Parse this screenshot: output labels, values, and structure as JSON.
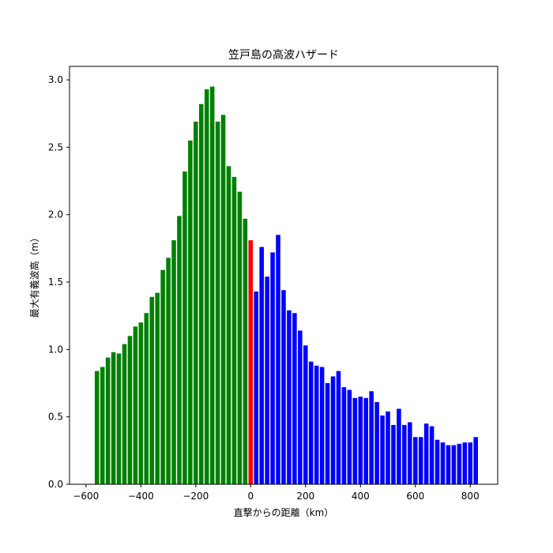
{
  "chart_data": {
    "type": "bar",
    "title": "笠戸島の高波ハザード",
    "xlabel": "直撃からの距離（km）",
    "ylabel": "最大有義波高（m）",
    "xlim": [
      -660,
      900
    ],
    "ylim": [
      0,
      3.1
    ],
    "x_ticks": [
      -600,
      -400,
      -200,
      0,
      200,
      400,
      600,
      800
    ],
    "y_ticks": [
      0.0,
      0.5,
      1.0,
      1.5,
      2.0,
      2.5,
      3.0
    ],
    "x_tick_labels": [
      "−600",
      "−400",
      "−200",
      "0",
      "200",
      "400",
      "600",
      "800"
    ],
    "y_tick_labels": [
      "0.0",
      "0.5",
      "1.0",
      "1.5",
      "2.0",
      "2.5",
      "3.0"
    ],
    "grid": false,
    "legend": "none",
    "colors": {
      "approach": "#008000",
      "direct": "#ff0000",
      "departure": "#0000ff"
    },
    "bar_width_km": 16,
    "series": [
      {
        "color_key": "approach",
        "x": [
          -560,
          -540,
          -520,
          -500,
          -480,
          -460,
          -440,
          -420,
          -400,
          -380,
          -360,
          -340,
          -320,
          -300,
          -280,
          -260,
          -240,
          -220,
          -200,
          -180,
          -160,
          -140,
          -120,
          -100,
          -80,
          -60,
          -40,
          -20
        ],
        "values": [
          0.84,
          0.87,
          0.94,
          0.98,
          0.97,
          1.04,
          1.1,
          1.17,
          1.2,
          1.27,
          1.39,
          1.42,
          1.59,
          1.68,
          1.81,
          1.99,
          2.32,
          2.55,
          2.69,
          2.82,
          2.93,
          2.95,
          2.69,
          2.74,
          2.36,
          2.28,
          2.17,
          1.97
        ]
      },
      {
        "color_key": "direct",
        "x": [
          0
        ],
        "values": [
          1.81
        ]
      },
      {
        "color_key": "departure",
        "x": [
          20,
          40,
          60,
          80,
          100,
          120,
          140,
          160,
          180,
          200,
          220,
          240,
          260,
          280,
          300,
          320,
          340,
          360,
          380,
          400,
          420,
          440,
          460,
          480,
          500,
          520,
          540,
          560,
          580,
          600,
          620,
          640,
          660,
          680,
          700,
          720,
          740,
          760,
          780,
          800,
          820
        ],
        "values": [
          1.43,
          1.76,
          1.54,
          1.72,
          1.85,
          1.44,
          1.29,
          1.27,
          1.14,
          1.03,
          0.91,
          0.88,
          0.87,
          0.75,
          0.8,
          0.84,
          0.72,
          0.7,
          0.64,
          0.65,
          0.64,
          0.69,
          0.61,
          0.51,
          0.54,
          0.44,
          0.56,
          0.44,
          0.46,
          0.35,
          0.35,
          0.45,
          0.43,
          0.33,
          0.31,
          0.29,
          0.29,
          0.3,
          0.31,
          0.31,
          0.35
        ]
      }
    ]
  }
}
